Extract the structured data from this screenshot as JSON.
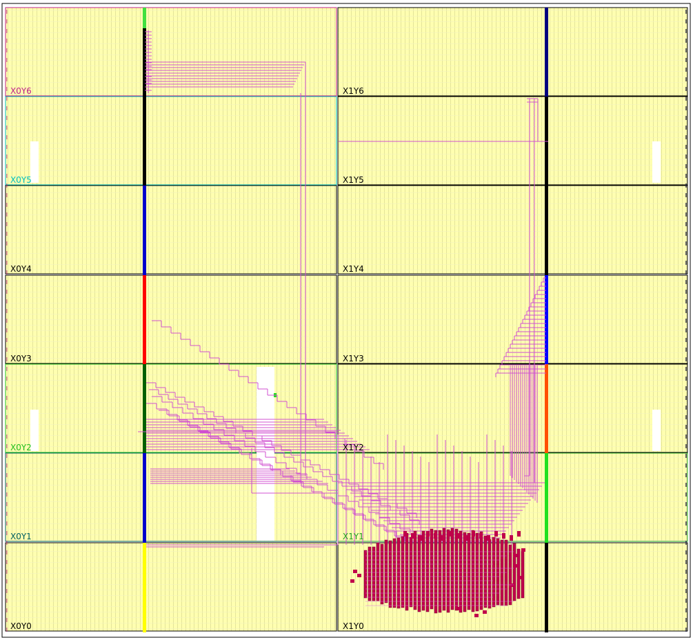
{
  "view": {
    "background": "#ffffff",
    "fabric_color": "#ffffb0",
    "column_color": "#e8e8a0",
    "net_color": "#d050d0",
    "cell_color": "#c0004a"
  },
  "clock_regions": [
    {
      "label": "X0Y6",
      "color": "#c0208a",
      "col": 0,
      "row": 6
    },
    {
      "label": "X1Y6",
      "color": "#000000",
      "col": 1,
      "row": 6
    },
    {
      "label": "X0Y5",
      "color": "#00c0c0",
      "col": 0,
      "row": 5
    },
    {
      "label": "X1Y5",
      "color": "#000000",
      "col": 1,
      "row": 5
    },
    {
      "label": "X0Y4",
      "color": "#000000",
      "col": 0,
      "row": 4
    },
    {
      "label": "X1Y4",
      "color": "#000000",
      "col": 1,
      "row": 4
    },
    {
      "label": "X0Y3",
      "color": "#000000",
      "col": 0,
      "row": 3
    },
    {
      "label": "X1Y3",
      "color": "#000000",
      "col": 1,
      "row": 3
    },
    {
      "label": "X0Y2",
      "color": "#20c020",
      "col": 0,
      "row": 2
    },
    {
      "label": "X1Y2",
      "color": "#000000",
      "col": 1,
      "row": 2
    },
    {
      "label": "X0Y1",
      "color": "#006060",
      "col": 0,
      "row": 1
    },
    {
      "label": "X1Y1",
      "color": "#20a020",
      "col": 1,
      "row": 1
    },
    {
      "label": "X0Y0",
      "color": "#000000",
      "col": 0,
      "row": 0
    },
    {
      "label": "X1Y0",
      "color": "#000000",
      "col": 1,
      "row": 0
    }
  ],
  "clock_spines": {
    "left": [
      "#000000",
      "#000000",
      "#0000cc",
      "#ff0000",
      "#006000",
      "#0000cc",
      "#ffff00"
    ],
    "left_top": "#40e040",
    "right": [
      "#000080",
      "#000000",
      "#000000",
      "#0000ff",
      "#ff5000",
      "#20e020",
      "#000000"
    ]
  }
}
